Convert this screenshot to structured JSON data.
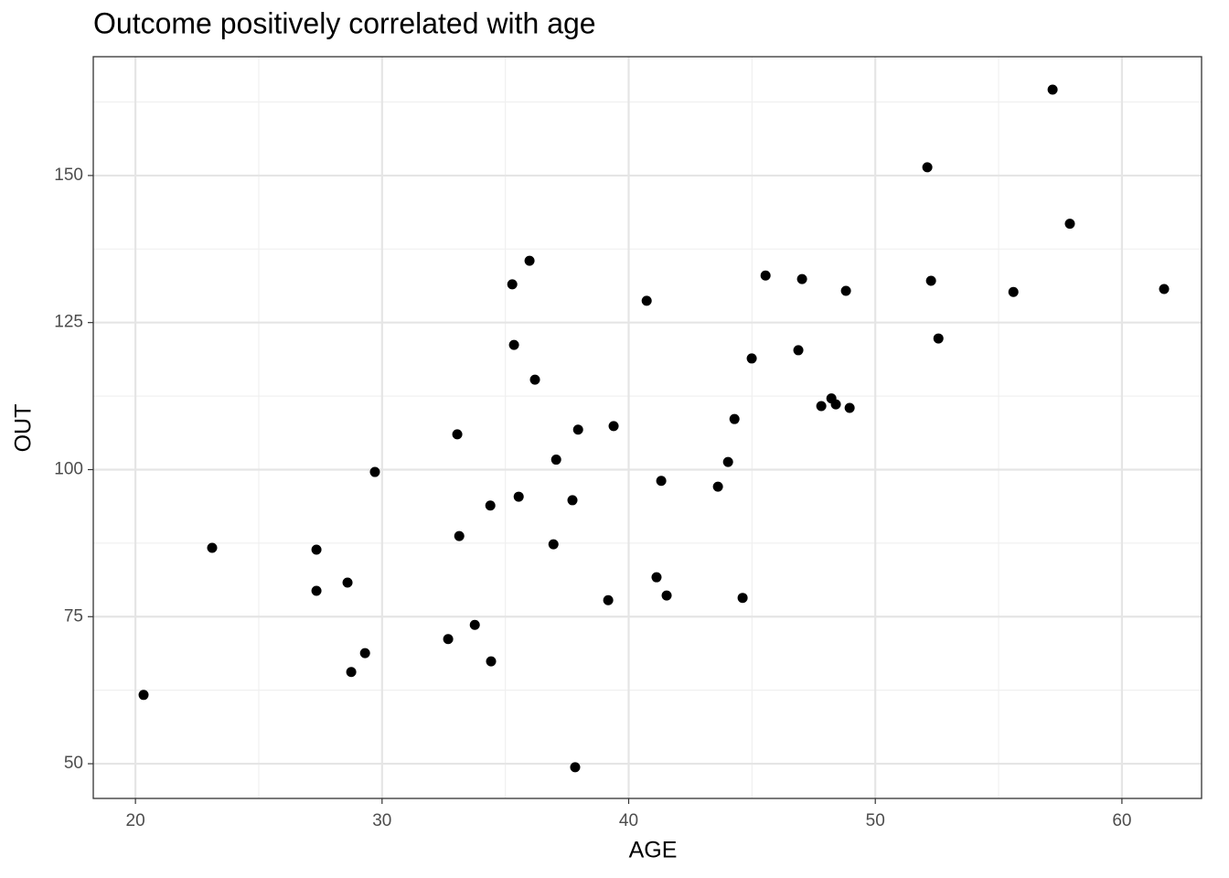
{
  "chart_data": {
    "type": "scatter",
    "title": "Outcome positively correlated with age",
    "x_label": "AGE",
    "y_label": "OUT",
    "color": "#000000",
    "x": [
      20.33,
      23.11,
      27.34,
      27.34,
      28.6,
      28.75,
      29.31,
      29.71,
      32.68,
      33.05,
      33.13,
      33.76,
      34.39,
      34.42,
      35.28,
      35.35,
      35.54,
      35.98,
      36.2,
      36.95,
      37.06,
      37.72,
      37.83,
      37.95,
      39.17,
      39.39,
      40.73,
      41.13,
      41.32,
      41.54,
      43.62,
      44.03,
      44.29,
      44.62,
      44.99,
      45.55,
      46.88,
      47.03,
      47.81,
      48.22,
      48.4,
      48.81,
      48.96,
      52.11,
      52.26,
      52.56,
      55.6,
      57.19,
      57.89,
      61.71
    ],
    "values": [
      61.7,
      86.7,
      86.4,
      79.4,
      80.8,
      65.6,
      68.8,
      99.6,
      71.2,
      106.0,
      88.7,
      73.6,
      93.9,
      67.4,
      131.5,
      121.2,
      95.4,
      135.5,
      115.3,
      87.3,
      101.7,
      94.8,
      49.4,
      106.8,
      77.8,
      107.4,
      128.7,
      81.7,
      98.1,
      78.6,
      97.1,
      101.3,
      108.6,
      78.2,
      118.9,
      133.0,
      120.3,
      132.4,
      110.8,
      112.1,
      111.1,
      130.4,
      110.5,
      151.4,
      132.1,
      122.3,
      130.2,
      164.6,
      141.8,
      130.7
    ],
    "xlim": [
      18.29,
      63.23
    ],
    "ylim": [
      44.1,
      170.2
    ],
    "xticks": [
      20,
      30,
      40,
      50,
      60
    ],
    "yticks": [
      50,
      75,
      100,
      125,
      150
    ],
    "minor_xticks": [
      25,
      35,
      45,
      55
    ],
    "minor_yticks": [
      62.5,
      87.5,
      112.5,
      137.5,
      162.5
    ],
    "grid": true
  }
}
